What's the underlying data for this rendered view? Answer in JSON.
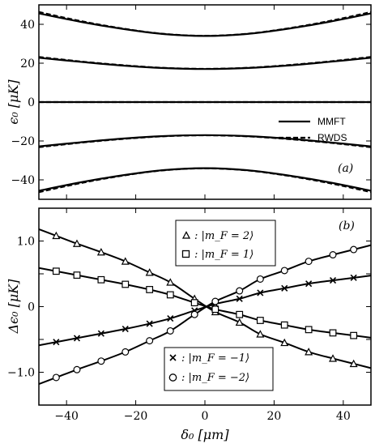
{
  "chart_data": [
    {
      "type": "line",
      "panel_label": "(a)",
      "ylabel": "ϵ₀ [μK]",
      "xlabel": "",
      "xlim": [
        -48,
        48
      ],
      "ylim": [
        -50,
        50
      ],
      "yticks": [
        -40,
        -20,
        0,
        20,
        40
      ],
      "yticklabels": [
        "−40",
        "−20",
        "0",
        "20",
        "40"
      ],
      "legend": {
        "position": "right",
        "entries": [
          {
            "label": "MMFT",
            "style": "solid"
          },
          {
            "label": "RWDS",
            "style": "dashed"
          }
        ]
      },
      "series": [
        {
          "name": "MMFT",
          "style": "solid",
          "x": [
            -48,
            -36,
            -24,
            -12,
            0,
            12,
            24,
            36,
            48
          ],
          "curves": [
            [
              45.6,
              41.3,
              37.7,
              35.0,
              34.0,
              35.0,
              37.7,
              41.3,
              45.6
            ],
            [
              22.8,
              20.7,
              18.8,
              17.5,
              17.0,
              17.5,
              18.8,
              20.7,
              22.8
            ],
            [
              0,
              0,
              0,
              0,
              0,
              0,
              0,
              0,
              0
            ],
            [
              -22.8,
              -20.7,
              -18.8,
              -17.5,
              -17.0,
              -17.5,
              -18.8,
              -20.7,
              -22.8
            ],
            [
              -45.6,
              -41.3,
              -37.7,
              -35.0,
              -34.0,
              -35.0,
              -37.7,
              -41.3,
              -45.6
            ]
          ]
        },
        {
          "name": "RWDS",
          "style": "dashed",
          "x": [
            -48,
            -36,
            -24,
            -12,
            0,
            12,
            24,
            36,
            48
          ],
          "curves": [
            [
              46.3,
              41.7,
              37.9,
              35.1,
              34.1,
              35.1,
              37.9,
              41.7,
              46.3
            ],
            [
              23.2,
              20.9,
              19.0,
              17.6,
              17.1,
              17.6,
              19.0,
              20.9,
              23.2
            ],
            [
              0,
              0,
              0,
              0,
              0,
              0,
              0,
              0,
              0
            ],
            [
              -23.2,
              -20.9,
              -19.0,
              -17.6,
              -17.1,
              -17.6,
              -19.0,
              -20.9,
              -23.2
            ],
            [
              -46.3,
              -41.7,
              -37.9,
              -35.1,
              -34.1,
              -35.1,
              -37.9,
              -41.7,
              -46.3
            ]
          ]
        }
      ]
    },
    {
      "type": "line",
      "panel_label": "(b)",
      "ylabel": "Δϵ₀ [μK]",
      "xlabel": "δ₀ [μm]",
      "xlim": [
        -48,
        48
      ],
      "ylim": [
        -1.5,
        1.5
      ],
      "xticks": [
        -40,
        -20,
        0,
        20,
        40
      ],
      "xticklabels": [
        "−40",
        "−20",
        "0",
        "20",
        "40"
      ],
      "yticks": [
        -1.0,
        -0.5,
        0,
        0.5,
        1.0
      ],
      "yticklabels": [
        "−1.0",
        "",
        "0",
        "",
        "1.0"
      ],
      "legend_upper": {
        "position": "top-center",
        "entries": [
          {
            "marker": "triangle",
            "text": ": |m_F = 2⟩"
          },
          {
            "marker": "square",
            "text": ": |m_F = 1⟩"
          }
        ]
      },
      "legend_lower": {
        "position": "bottom-center",
        "entries": [
          {
            "marker": "x",
            "text": ": |m_F = −1⟩"
          },
          {
            "marker": "circle",
            "text": ": |m_F = −2⟩"
          }
        ]
      },
      "series": [
        {
          "name": "|m_F = 2⟩",
          "marker": "triangle",
          "x": [
            -43,
            -37,
            -30,
            -23,
            -16,
            -10,
            -3,
            3,
            10,
            16,
            23,
            30,
            37,
            43
          ],
          "y": [
            1.08,
            0.96,
            0.83,
            0.69,
            0.52,
            0.37,
            0.12,
            -0.08,
            -0.24,
            -0.42,
            -0.55,
            -0.69,
            -0.79,
            -0.87
          ]
        },
        {
          "name": "|m_F = 1⟩",
          "marker": "square",
          "x": [
            -43,
            -37,
            -30,
            -23,
            -16,
            -10,
            -3,
            3,
            10,
            16,
            23,
            30,
            37,
            43
          ],
          "y": [
            0.54,
            0.48,
            0.41,
            0.34,
            0.26,
            0.18,
            0.06,
            -0.04,
            -0.12,
            -0.21,
            -0.28,
            -0.35,
            -0.4,
            -0.44
          ]
        },
        {
          "name": "|m_F = −1⟩",
          "marker": "x",
          "x": [
            -43,
            -37,
            -30,
            -23,
            -16,
            -10,
            -3,
            3,
            10,
            16,
            23,
            30,
            37,
            43
          ],
          "y": [
            -0.54,
            -0.48,
            -0.41,
            -0.34,
            -0.26,
            -0.18,
            -0.06,
            0.04,
            0.12,
            0.21,
            0.28,
            0.35,
            0.4,
            0.44
          ]
        },
        {
          "name": "|m_F = −2⟩",
          "marker": "circle",
          "x": [
            -43,
            -37,
            -30,
            -23,
            -16,
            -10,
            -3,
            3,
            10,
            16,
            23,
            30,
            37,
            43
          ],
          "y": [
            -1.08,
            -0.96,
            -0.83,
            -0.69,
            -0.52,
            -0.37,
            -0.12,
            0.08,
            0.24,
            0.42,
            0.55,
            0.69,
            0.79,
            0.87
          ]
        }
      ]
    }
  ]
}
